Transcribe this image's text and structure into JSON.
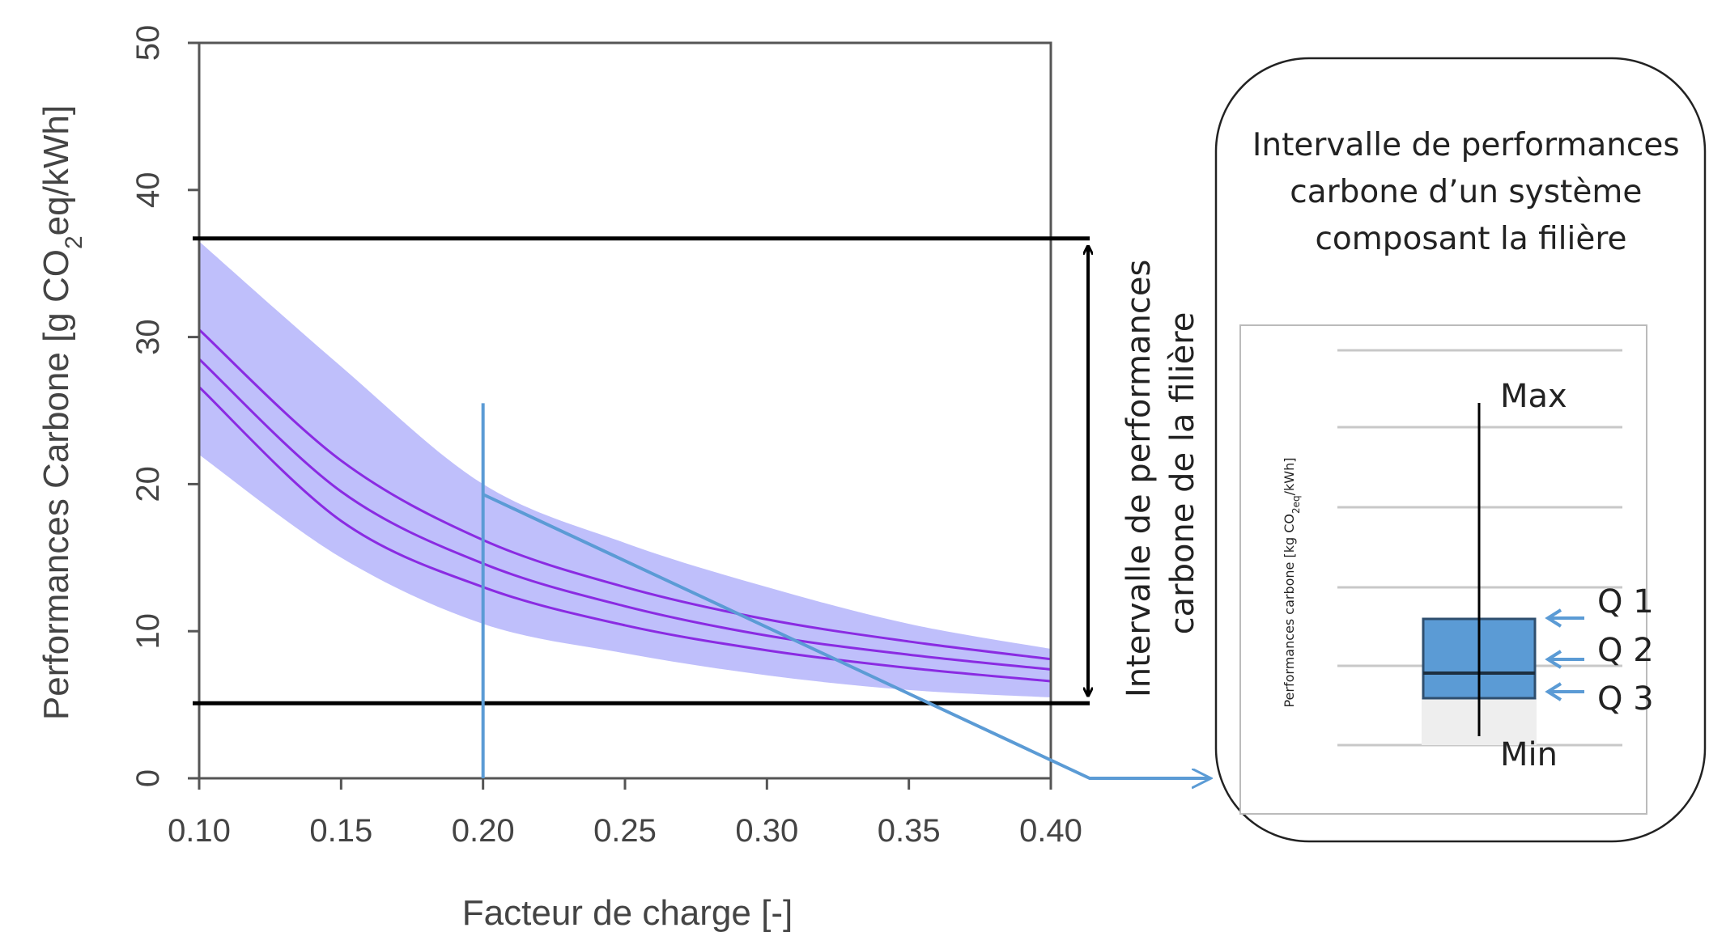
{
  "chart_data": {
    "type": "line",
    "xlabel": "Facteur de charge [-]",
    "ylabel_main": "Performances Carbone [g CO",
    "ylabel_sub": "2",
    "ylabel_tail": "eq/kWh]",
    "xlim": [
      0.1,
      0.4
    ],
    "ylim": [
      0,
      50
    ],
    "x_ticks": [
      "0.10",
      "0.15",
      "0.20",
      "0.25",
      "0.30",
      "0.35",
      "0.40"
    ],
    "y_ticks": [
      "0",
      "10",
      "20",
      "30",
      "40",
      "50"
    ],
    "grid": false,
    "series": [
      {
        "role": "band-upper",
        "points": [
          [
            0.1,
            36.5
          ],
          [
            0.15,
            28.0
          ],
          [
            0.2,
            20.0
          ],
          [
            0.25,
            16.0
          ],
          [
            0.3,
            13.0
          ],
          [
            0.35,
            10.5
          ],
          [
            0.4,
            8.8
          ]
        ]
      },
      {
        "role": "band-lower",
        "points": [
          [
            0.1,
            22.0
          ],
          [
            0.15,
            15.0
          ],
          [
            0.2,
            10.5
          ],
          [
            0.25,
            8.5
          ],
          [
            0.3,
            7.0
          ],
          [
            0.35,
            6.0
          ],
          [
            0.4,
            5.5
          ]
        ]
      },
      {
        "role": "curve",
        "points": [
          [
            0.1,
            30.5
          ],
          [
            0.15,
            21.6
          ],
          [
            0.2,
            16.2
          ],
          [
            0.25,
            13.0
          ],
          [
            0.3,
            10.8
          ],
          [
            0.35,
            9.3
          ],
          [
            0.4,
            8.1
          ]
        ]
      },
      {
        "role": "curve",
        "points": [
          [
            0.1,
            28.5
          ],
          [
            0.15,
            19.5
          ],
          [
            0.2,
            14.6
          ],
          [
            0.25,
            11.7
          ],
          [
            0.3,
            9.7
          ],
          [
            0.35,
            8.4
          ],
          [
            0.4,
            7.4
          ]
        ]
      },
      {
        "role": "curve",
        "points": [
          [
            0.1,
            26.6
          ],
          [
            0.15,
            17.5
          ],
          [
            0.2,
            13.0
          ],
          [
            0.25,
            10.4
          ],
          [
            0.3,
            8.7
          ],
          [
            0.35,
            7.5
          ],
          [
            0.4,
            6.6
          ]
        ]
      }
    ],
    "reference_lines": [
      36.7,
      5.1
    ],
    "marker_x": 0.2,
    "marker_top": 25.5,
    "marker_band_top": 19.3,
    "colors": {
      "band": "#bfbffb",
      "curve": "#8a2be2",
      "marker": "#5b9bd5",
      "ref": "#000000",
      "axis": "#555555"
    }
  },
  "interval_label": [
    "Intervalle de performances",
    "carbone de la filière"
  ],
  "inset": {
    "title": [
      "Intervalle de performances",
      "carbone d’un système",
      "composant la filière"
    ],
    "ylabel_main": "Performances carbone [kg CO",
    "ylabel_sub": "2eq",
    "ylabel_tail": "/kWh]",
    "max_label": "Max",
    "min_label": "Min",
    "quartiles": [
      "Q 1",
      "Q 2",
      "Q 3"
    ],
    "box_color": "#5b9bd5"
  }
}
